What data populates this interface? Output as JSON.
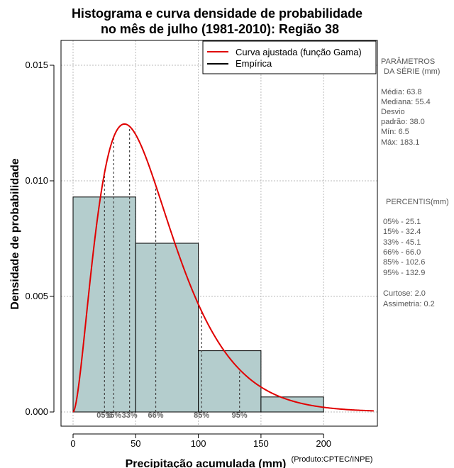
{
  "chart_data": {
    "type": "bar",
    "title_line1": "Histograma e curva densidade de probabilidade",
    "title_line2": "no mês de julho (1981-2010): Região 38",
    "xlabel": "Precipitação acumulada (mm)",
    "ylabel": "Densidade de probabilidade",
    "credit": "(Produto:CPTEC/INPE)",
    "xlim": [
      -10,
      240
    ],
    "ylim": [
      -0.0005,
      0.016
    ],
    "x_ticks": [
      0,
      50,
      100,
      150,
      200
    ],
    "x_tick_labels": [
      "0",
      "50",
      "100",
      "150",
      "200"
    ],
    "y_ticks": [
      0.0,
      0.005,
      0.01,
      0.015
    ],
    "y_tick_labels": [
      "0.000",
      "0.005",
      "0.010",
      "0.015"
    ],
    "grid": true,
    "bin_edges": [
      0,
      50,
      100,
      150,
      200
    ],
    "bin_density": [
      0.0093,
      0.0073,
      0.00265,
      0.00065
    ],
    "gamma_curve": {
      "shape": 2.8,
      "scale": 22.8,
      "x_range": [
        0,
        240
      ]
    },
    "percentiles": [
      {
        "label": "05%",
        "x": 25.1
      },
      {
        "label": "15%",
        "x": 32.4
      },
      {
        "label": "33%",
        "x": 45.1
      },
      {
        "label": "66%",
        "x": 66.0
      },
      {
        "label": "85%",
        "x": 102.6
      },
      {
        "label": "95%",
        "x": 132.9
      }
    ],
    "legend": {
      "position": "top-right",
      "entries": [
        {
          "name": "Curva ajustada (função Gama)",
          "color": "#e00000"
        },
        {
          "name": "Empírica",
          "color": "#000000"
        }
      ]
    },
    "colors": {
      "bar_fill": "#b4cdcd",
      "curve": "#e00000",
      "grid": "#bbbbbb"
    }
  },
  "stats_panel": {
    "header_line1": "PARÂMETROS",
    "header_line2": "DA SÉRIE (mm)",
    "lines": [
      "Média:  63.8",
      "Mediana:  55.4",
      "Desvio",
      "padrão:  38.0",
      "Mín:  6.5",
      "Máx:  183.1"
    ]
  },
  "percentile_panel": {
    "header": "PERCENTIS(mm)",
    "lines": [
      "05% -  25.1",
      "15% -  32.4",
      "33% -  45.1",
      "66% -  66.0",
      "85% -  102.6",
      "95% -  132.9"
    ]
  },
  "shape_panel": {
    "lines": [
      "Curtose:  2.0",
      "Assimetria:  0.2"
    ]
  }
}
